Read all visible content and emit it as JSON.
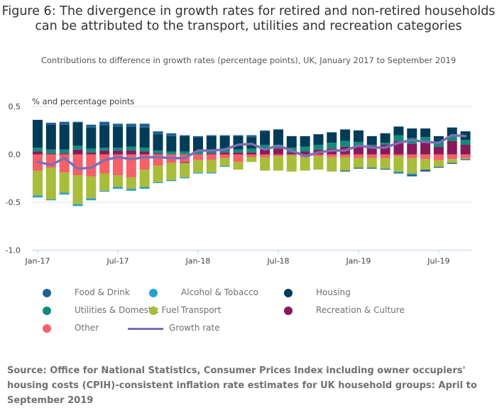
{
  "title": "Figure 6: The divergence in growth rates for retired and non-retired households can be attributed to the transport, utilities and recreation categories",
  "subtitle": "Contributions to difference in growth rates (percentage points), UK, January 2017 to September 2019",
  "source": "Source: Office for National Statistics, Consumer Prices Index including owner occupiers' housing costs (CPIH)-consistent inflation rate estimates for UK household groups: April to September 2019",
  "chart_data": {
    "type": "bar",
    "stacked": true,
    "title": "Figure 6: The divergence in growth rates for retired and non-retired households can be attributed to the transport, utilities and recreation categories",
    "subtitle": "Contributions to difference in growth rates (percentage points), UK, January 2017 to September 2019",
    "ylabel": "% and percentage points",
    "xlabel": "",
    "ylim": [
      -1.0,
      0.5
    ],
    "yticks": [
      0.5,
      0.0,
      -0.5,
      -1.0
    ],
    "ytick_labels": [
      "0.5",
      "0.0",
      "-0.5",
      "-1.0"
    ],
    "grid": true,
    "legend_position": "bottom",
    "xtick_labels": [
      "Jan-17",
      "Jul-17",
      "Jan-18",
      "Jul-18",
      "Jan-19",
      "Jul-19"
    ],
    "categories": [
      "Jan-17",
      "Feb-17",
      "Mar-17",
      "Apr-17",
      "May-17",
      "Jun-17",
      "Jul-17",
      "Aug-17",
      "Sep-17",
      "Oct-17",
      "Nov-17",
      "Dec-17",
      "Jan-18",
      "Feb-18",
      "Mar-18",
      "Apr-18",
      "May-18",
      "Jun-18",
      "Jul-18",
      "Aug-18",
      "Sep-18",
      "Oct-18",
      "Nov-18",
      "Dec-18",
      "Jan-19",
      "Feb-19",
      "Mar-19",
      "Apr-19",
      "May-19",
      "Jun-19",
      "Jul-19",
      "Aug-19",
      "Sep-19"
    ],
    "series": [
      {
        "name": "Food & Drink",
        "color": "#206095",
        "kind": "bar",
        "values": [
          0.0,
          0.02,
          0.03,
          0.01,
          0.03,
          0.04,
          0.03,
          0.03,
          0.04,
          0.03,
          0.03,
          0.01,
          0.01,
          0.01,
          0.01,
          0.01,
          0.02,
          0.01,
          0.0,
          0.0,
          0.0,
          0.0,
          0.0,
          -0.01,
          -0.01,
          -0.01,
          -0.01,
          -0.01,
          -0.02,
          -0.02,
          -0.01,
          -0.01,
          -0.01
        ]
      },
      {
        "name": "Alcohol & Tobacco",
        "color": "#27a0cc",
        "kind": "bar",
        "values": [
          -0.02,
          -0.01,
          -0.02,
          -0.02,
          -0.02,
          -0.01,
          -0.02,
          -0.02,
          -0.02,
          -0.01,
          -0.01,
          -0.01,
          -0.01,
          -0.01,
          -0.01,
          0.0,
          0.0,
          0.0,
          0.0,
          0.0,
          0.0,
          0.0,
          0.0,
          0.0,
          0.0,
          0.0,
          0.0,
          -0.01,
          -0.01,
          0.0,
          0.0,
          0.0,
          0.0
        ]
      },
      {
        "name": "Housing",
        "color": "#003c57",
        "kind": "bar",
        "values": [
          0.29,
          0.26,
          0.26,
          0.24,
          0.22,
          0.23,
          0.22,
          0.21,
          0.21,
          0.17,
          0.16,
          0.16,
          0.15,
          0.15,
          0.14,
          0.14,
          0.12,
          0.14,
          0.16,
          0.12,
          0.11,
          0.11,
          0.11,
          0.12,
          0.12,
          0.09,
          0.1,
          0.09,
          0.1,
          0.09,
          0.06,
          0.09,
          0.09
        ]
      },
      {
        "name": "Utilities & Domestic Fuel",
        "color": "#118c7b",
        "kind": "bar",
        "values": [
          0.04,
          0.04,
          0.04,
          0.04,
          0.04,
          0.03,
          0.03,
          0.04,
          0.04,
          0.03,
          0.03,
          0.03,
          0.03,
          0.03,
          0.03,
          0.03,
          0.04,
          0.05,
          0.04,
          0.05,
          0.05,
          0.05,
          0.06,
          0.06,
          0.05,
          0.01,
          0.02,
          0.06,
          0.06,
          0.06,
          0.05,
          0.05,
          0.05
        ]
      },
      {
        "name": "Transport",
        "color": "#a8bd3a",
        "kind": "bar",
        "values": [
          -0.26,
          -0.33,
          -0.21,
          -0.3,
          -0.23,
          -0.18,
          -0.12,
          -0.12,
          -0.18,
          -0.17,
          -0.18,
          -0.15,
          -0.13,
          -0.13,
          -0.08,
          -0.08,
          -0.05,
          -0.14,
          -0.15,
          -0.17,
          -0.14,
          -0.14,
          -0.15,
          -0.14,
          -0.1,
          -0.1,
          -0.11,
          -0.16,
          -0.16,
          -0.11,
          -0.07,
          -0.04,
          -0.01
        ]
      },
      {
        "name": "Recreation & Culture",
        "color": "#871a5b",
        "kind": "bar",
        "values": [
          0.03,
          0.01,
          0.01,
          0.05,
          0.02,
          0.04,
          0.04,
          0.04,
          0.03,
          0.01,
          0.0,
          -0.01,
          0.0,
          0.01,
          0.02,
          0.02,
          0.02,
          0.05,
          0.06,
          0.02,
          0.03,
          0.05,
          0.06,
          0.08,
          0.08,
          0.09,
          0.1,
          0.14,
          0.11,
          0.12,
          0.08,
          0.14,
          0.1
        ]
      },
      {
        "name": "Other",
        "color": "#f66068",
        "kind": "bar",
        "values": [
          -0.17,
          -0.14,
          -0.19,
          -0.22,
          -0.23,
          -0.2,
          -0.22,
          -0.24,
          -0.16,
          -0.12,
          -0.09,
          -0.08,
          -0.06,
          -0.06,
          -0.04,
          -0.08,
          -0.03,
          -0.03,
          -0.02,
          -0.01,
          -0.03,
          -0.02,
          -0.03,
          -0.03,
          -0.04,
          -0.04,
          -0.04,
          -0.02,
          -0.04,
          -0.05,
          -0.06,
          -0.05,
          -0.04
        ]
      },
      {
        "name": "Growth rate",
        "color": "#7d6eb7",
        "kind": "line",
        "values": [
          -0.08,
          -0.11,
          -0.04,
          -0.15,
          -0.14,
          -0.06,
          -0.03,
          -0.05,
          -0.03,
          -0.03,
          -0.04,
          -0.04,
          0.04,
          0.04,
          0.05,
          0.1,
          0.11,
          0.05,
          0.09,
          0.04,
          -0.02,
          0.02,
          0.04,
          0.04,
          0.09,
          0.07,
          0.07,
          0.12,
          0.15,
          0.13,
          0.12,
          0.2,
          0.19
        ]
      }
    ]
  },
  "legend": [
    {
      "label": "Food & Drink",
      "color": "#206095",
      "kind": "dot"
    },
    {
      "label": "Alcohol & Tobacco",
      "color": "#27a0cc",
      "kind": "dot"
    },
    {
      "label": "Housing",
      "color": "#003c57",
      "kind": "dot"
    },
    {
      "label": "Utilities & Domestic Fuel",
      "color": "#118c7b",
      "kind": "dot"
    },
    {
      "label": "Transport",
      "color": "#a8bd3a",
      "kind": "dot"
    },
    {
      "label": "Recreation & Culture",
      "color": "#871a5b",
      "kind": "dot"
    },
    {
      "label": "Other",
      "color": "#f66068",
      "kind": "dot"
    },
    {
      "label": "Growth rate",
      "color": "#7d6eb7",
      "kind": "line"
    }
  ]
}
